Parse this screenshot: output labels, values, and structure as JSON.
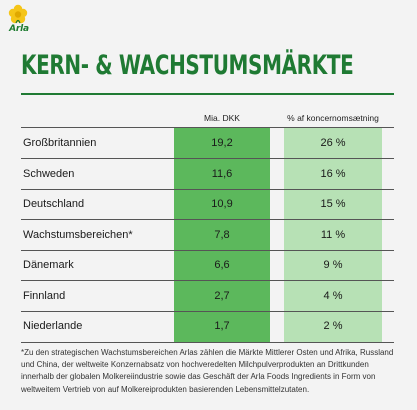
{
  "brand": {
    "logo_text": "Arla",
    "green": "#1f7a33",
    "flower": "#f5c518"
  },
  "title": "KERN- & WACHSTUMSMÄRKTE",
  "table": {
    "headers": [
      "",
      "Mia. DKK",
      "% af koncernomsætning"
    ],
    "column_colors": {
      "value": "#5cb85c",
      "percent": "#b7e1b5"
    },
    "rows": [
      {
        "label": "Großbritannien",
        "value": "19,2",
        "percent": "26 %"
      },
      {
        "label": "Schweden",
        "value": "11,6",
        "percent": "16 %"
      },
      {
        "label": "Deutschland",
        "value": "10,9",
        "percent": "15 %"
      },
      {
        "label": "Wachstumsbereichen*",
        "value": "7,8",
        "percent": "11 %"
      },
      {
        "label": "Dänemark",
        "value": "6,6",
        "percent": "9 %"
      },
      {
        "label": "Finnland",
        "value": "2,7",
        "percent": "4 %"
      },
      {
        "label": "Niederlande",
        "value": "1,7",
        "percent": "2 %"
      }
    ]
  },
  "footnote": "*Zu den strategischen Wachstumsbereichen Arlas zählen die Märkte Mittlerer Osten und Afrika, Russland und China, der weltweite Konzernabsatz von hochveredelten Milchpulverprodukten an Drittkunden innerhalb der globalen Molkereiindustrie sowie das Geschäft der Arla Foods Ingredients in Form von weltweitem Vertrieb von auf Molkereiprodukten basierenden Lebensmittelzutaten."
}
